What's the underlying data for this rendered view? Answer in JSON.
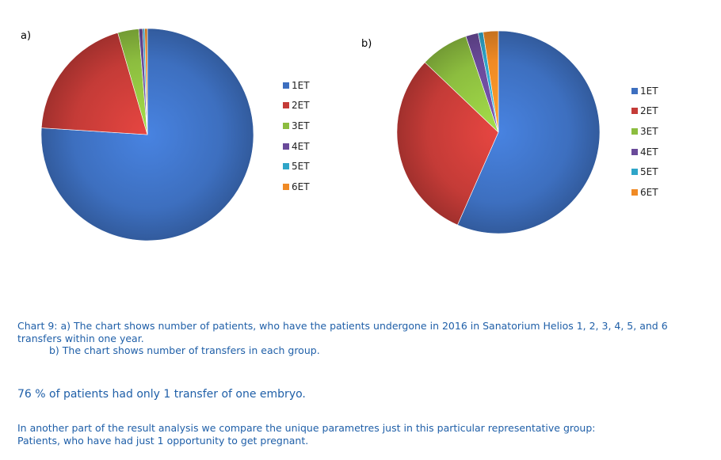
{
  "colors": {
    "1ET": "#3d6fbf",
    "2ET": "#c43b37",
    "3ET": "#8cbd3f",
    "4ET": "#6a4a9a",
    "5ET": "#2fa5c8",
    "6ET": "#f08a25"
  },
  "chart_data": [
    {
      "type": "pie",
      "panel_label": "a)",
      "legend": [
        "1ET",
        "2ET",
        "3ET",
        "4ET",
        "5ET",
        "6ET"
      ],
      "legend_placement": "right",
      "categories": [
        "1ET",
        "2ET",
        "3ET",
        "4ET",
        "5ET",
        "6ET"
      ],
      "values": [
        76,
        19.5,
        3.2,
        0.6,
        0.3,
        0.4
      ]
    },
    {
      "type": "pie",
      "panel_label": "b)",
      "legend": [
        "1ET",
        "2ET",
        "3ET",
        "4ET",
        "5ET",
        "6ET"
      ],
      "legend_placement": "right",
      "categories": [
        "1ET",
        "2ET",
        "3ET",
        "4ET",
        "5ET",
        "6ET"
      ],
      "values": [
        56.6,
        30.5,
        7.7,
        2,
        0.8,
        2.4
      ]
    }
  ],
  "caption": {
    "line1": "Chart 9:  a) The chart shows number of patients, who have the patients undergone in 2016 in Sanatorium Helios 1, 2, 3, 4, 5, and 6 transfers within one year.",
    "line2": "b) The chart shows number of transfers in each group."
  },
  "summary": "76 % of patients had only 1 transfer of one embryo.",
  "note": {
    "line1": "In another part of the result analysis we compare the unique parametres just in this particular representative group:",
    "line2": "Patients, who have had just 1 opportunity to get pregnant."
  }
}
